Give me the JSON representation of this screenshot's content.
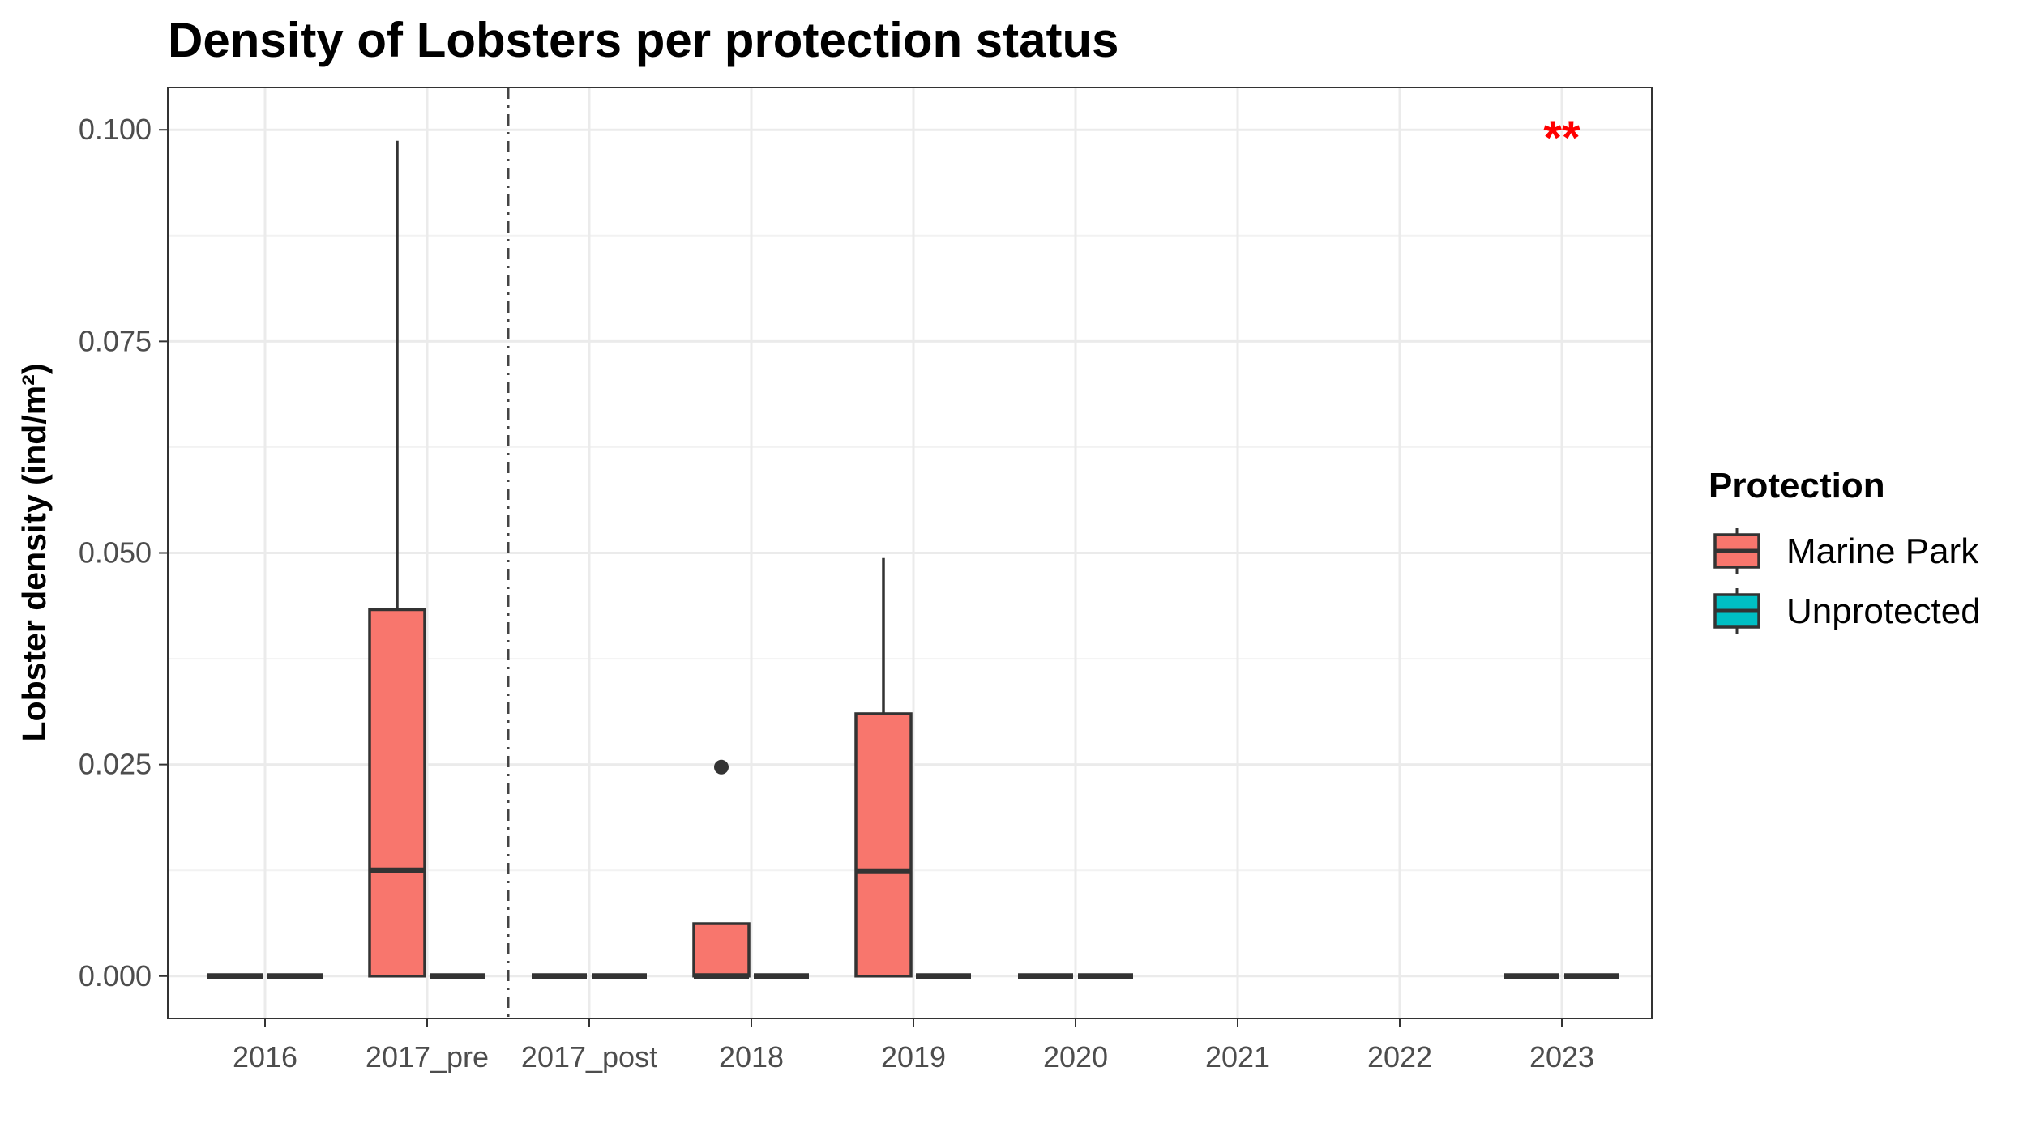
{
  "chart_data": {
    "type": "box",
    "title": "Density of Lobsters per protection status",
    "xlabel": "",
    "ylabel": "Lobster density (ind/m²)",
    "ylim": [
      -0.005,
      0.105
    ],
    "yticks": [
      0.0,
      0.025,
      0.05,
      0.075,
      0.1
    ],
    "ytick_labels": [
      "0.000",
      "0.025",
      "0.050",
      "0.075",
      "0.100"
    ],
    "categories": [
      "2016",
      "2017_pre",
      "2017_post",
      "2018",
      "2019",
      "2020",
      "2021",
      "2022",
      "2023"
    ],
    "grid": true,
    "vline_between": [
      "2017_pre",
      "2017_post"
    ],
    "legend": {
      "title": "Protection",
      "position": "right"
    },
    "series": [
      {
        "name": "Marine Park",
        "color": "#F8766D",
        "boxes": [
          {
            "category": "2016",
            "min": 0,
            "q1": 0,
            "median": 0,
            "q3": 0,
            "max": 0,
            "outliers": []
          },
          {
            "category": "2017_pre",
            "min": 0,
            "q1": 0,
            "median": 0.0125,
            "q3": 0.0433,
            "max": 0.0987,
            "outliers": []
          },
          {
            "category": "2017_post",
            "min": 0,
            "q1": 0,
            "median": 0,
            "q3": 0,
            "max": 0,
            "outliers": []
          },
          {
            "category": "2018",
            "min": 0,
            "q1": 0,
            "median": 0,
            "q3": 0.0062,
            "max": 0.0062,
            "outliers": [
              0.0247
            ]
          },
          {
            "category": "2019",
            "min": 0,
            "q1": 0,
            "median": 0.0124,
            "q3": 0.031,
            "max": 0.0494,
            "outliers": []
          },
          {
            "category": "2020",
            "min": 0,
            "q1": 0,
            "median": 0,
            "q3": 0,
            "max": 0,
            "outliers": []
          },
          {
            "category": "2023",
            "min": 0,
            "q1": 0,
            "median": 0,
            "q3": 0,
            "max": 0,
            "outliers": []
          }
        ]
      },
      {
        "name": "Unprotected",
        "color": "#00BFC4",
        "boxes": [
          {
            "category": "2016",
            "min": 0,
            "q1": 0,
            "median": 0,
            "q3": 0,
            "max": 0,
            "outliers": []
          },
          {
            "category": "2017_pre",
            "min": 0,
            "q1": 0,
            "median": 0,
            "q3": 0,
            "max": 0,
            "outliers": []
          },
          {
            "category": "2017_post",
            "min": 0,
            "q1": 0,
            "median": 0,
            "q3": 0,
            "max": 0,
            "outliers": []
          },
          {
            "category": "2018",
            "min": 0,
            "q1": 0,
            "median": 0,
            "q3": 0,
            "max": 0,
            "outliers": []
          },
          {
            "category": "2019",
            "min": 0,
            "q1": 0,
            "median": 0,
            "q3": 0,
            "max": 0,
            "outliers": []
          },
          {
            "category": "2020",
            "min": 0,
            "q1": 0,
            "median": 0,
            "q3": 0,
            "max": 0,
            "outliers": []
          },
          {
            "category": "2023",
            "min": 0,
            "q1": 0,
            "median": 0,
            "q3": 0,
            "max": 0,
            "outliers": []
          }
        ]
      }
    ],
    "annotations": [
      {
        "text": "**",
        "category": "2023",
        "y": 0.1,
        "color": "#ff0000"
      }
    ]
  }
}
